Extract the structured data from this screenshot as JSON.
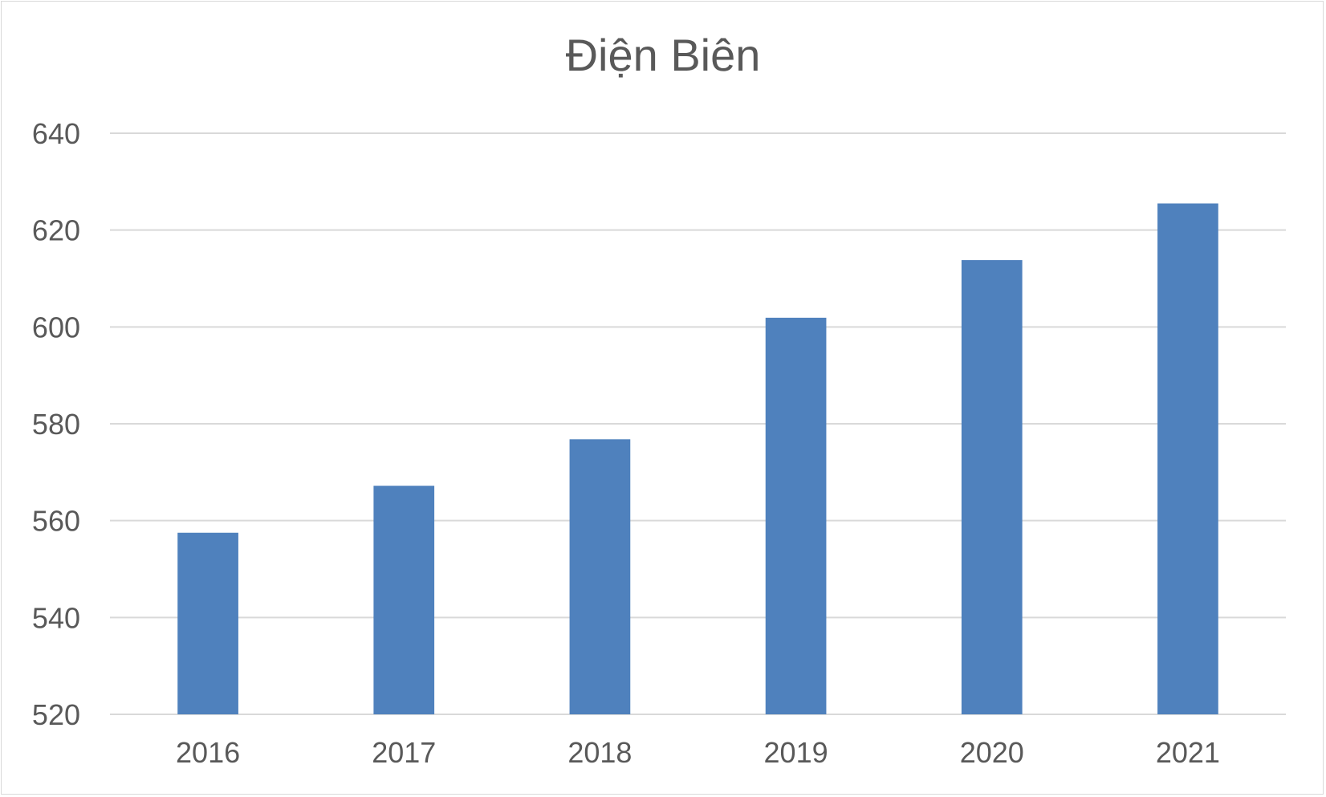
{
  "chart_data": {
    "type": "bar",
    "title": "Điện Biên",
    "xlabel": "",
    "ylabel": "",
    "categories": [
      "2016",
      "2017",
      "2018",
      "2019",
      "2020",
      "2021"
    ],
    "values": [
      557.5,
      567.2,
      576.8,
      601.9,
      613.8,
      625.5
    ],
    "ylim": [
      520,
      640
    ],
    "yticks": [
      "520",
      "540",
      "560",
      "580",
      "600",
      "620",
      "640"
    ],
    "grid": true,
    "legend": "none",
    "bar_color": "#4f81bd",
    "grid_color": "#d9d9d9"
  }
}
